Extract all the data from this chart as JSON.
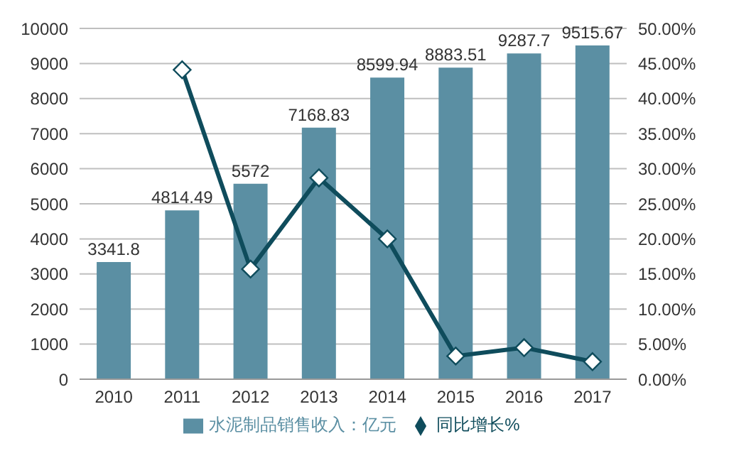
{
  "chart_data": {
    "type": "bar",
    "categories": [
      "2010",
      "2011",
      "2012",
      "2013",
      "2014",
      "2015",
      "2016",
      "2017"
    ],
    "series": [
      {
        "name": "水泥制品销售收入：亿元",
        "color": "#5b8fa3",
        "values": [
          3341.8,
          4814.49,
          5572,
          7168.83,
          8599.94,
          8883.51,
          9287.7,
          9515.67
        ],
        "data_labels": true
      },
      {
        "name": "同比增长%",
        "type": "line",
        "axis": "y2",
        "color": "#0f4c5c",
        "marker": "diamond",
        "values": [
          null,
          44.1,
          15.7,
          28.7,
          20.0,
          3.3,
          4.5,
          2.5
        ]
      }
    ],
    "ylim": [
      0,
      10000
    ],
    "yticks": [
      0,
      1000,
      2000,
      3000,
      4000,
      5000,
      6000,
      7000,
      8000,
      9000,
      10000
    ],
    "y2lim": [
      0,
      50
    ],
    "y2ticks": [
      {
        "value": 0,
        "label": "0.00%"
      },
      {
        "value": 5,
        "label": "5.00%"
      },
      {
        "value": 10,
        "label": "10.00%"
      },
      {
        "value": 15,
        "label": "15.00%"
      },
      {
        "value": 20,
        "label": "20.00%"
      },
      {
        "value": 25,
        "label": "25.00%"
      },
      {
        "value": 30,
        "label": "30.00%"
      },
      {
        "value": 35,
        "label": "35.00%"
      },
      {
        "value": 40,
        "label": "40.00%"
      },
      {
        "value": 45,
        "label": "45.00%"
      },
      {
        "value": 50,
        "label": "50.00%"
      }
    ],
    "grid": "y",
    "legend": "bottom"
  }
}
